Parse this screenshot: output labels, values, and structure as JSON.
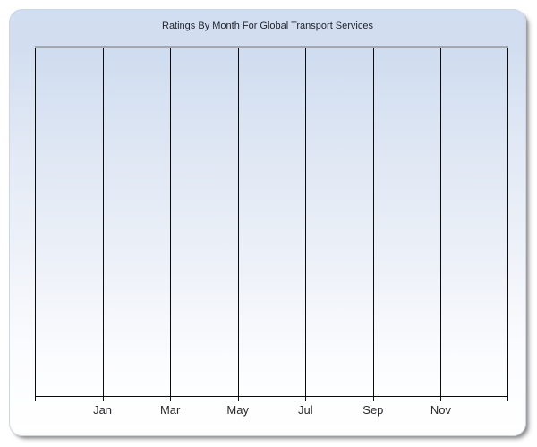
{
  "chart_data": {
    "type": "line",
    "title": "Ratings By Month For Global Transport Services",
    "categories": [
      "Jan",
      "Mar",
      "May",
      "Jul",
      "Sep",
      "Nov"
    ],
    "series": [],
    "xlabel": "",
    "ylabel": "",
    "x_gridline_count": 8,
    "grid": "vertical",
    "legend": "none",
    "plot_empty": true
  },
  "colors": {
    "panel_gradient_top": "#d1ddf0",
    "panel_gradient_bottom": "#ffffff",
    "plot_gradient_top": "#cfdcef",
    "plot_gradient_bottom": "#fdfeff",
    "gridline": "#0b0b0d",
    "plot_top_border": "#a3a7af",
    "title_text": "#1f2229",
    "axis_label_text": "#2a2a2c",
    "panel_shadow": "#a0a0a0"
  }
}
